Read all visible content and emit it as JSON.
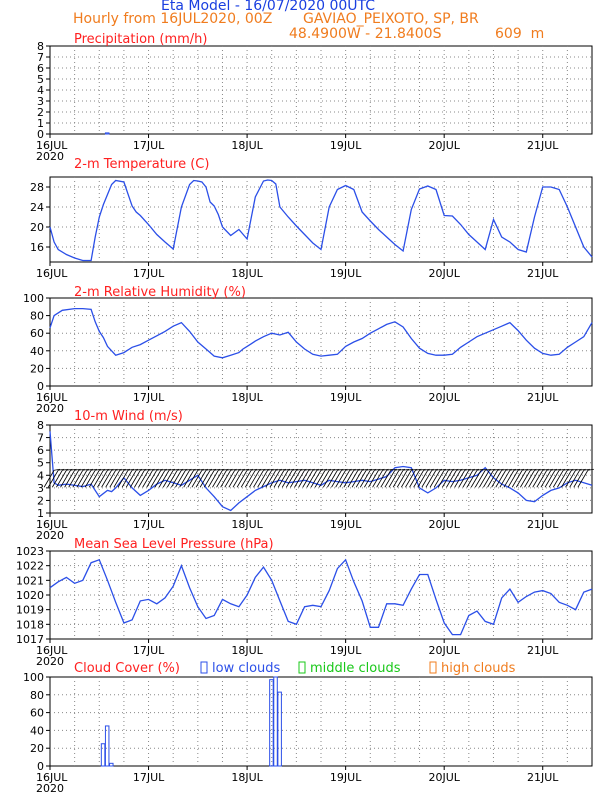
{
  "header": {
    "title": "Eta Model - 16/07/2020 00UTC",
    "subtitle": "Hourly from 16JUL2020, 00Z",
    "location": "GAVIAO_PEIXOTO, SP, BR",
    "coords": "48.4900W - 21.8400S",
    "elevation": "609  m"
  },
  "colors": {
    "title": "#1a3fe0",
    "meta": "#f07c1e",
    "panel_title": "#ff2020",
    "line": "#2b4fe8",
    "wind": "#000000",
    "mid": "#19c819"
  },
  "x_axis": {
    "ticks": [
      "16JUL",
      "17JUL",
      "18JUL",
      "19JUL",
      "20JUL",
      "21JUL"
    ],
    "year": "2020",
    "hours_range": [
      0,
      132
    ],
    "tick_interval_hours": 24
  },
  "chart_data": [
    {
      "type": "bar",
      "title": "Precipitation (mm/h)",
      "ylim": [
        0,
        8
      ],
      "yticks": [
        0,
        1,
        2,
        3,
        4,
        5,
        6,
        7,
        8
      ],
      "series": [
        {
          "x": [
            14
          ],
          "values": [
            0.1
          ]
        }
      ],
      "grid": true
    },
    {
      "type": "line",
      "title": "2-m Temperature (C)",
      "ylim": [
        13,
        30
      ],
      "yticks": [
        16,
        20,
        24,
        28
      ],
      "series": [
        {
          "x": [
            0,
            1,
            2,
            4,
            6,
            8,
            10,
            11,
            12,
            13,
            14,
            15,
            16,
            18,
            20,
            21,
            22,
            24,
            26,
            28,
            30,
            32,
            34,
            35,
            36,
            37,
            38,
            39,
            40,
            41,
            42,
            44,
            46,
            48,
            50,
            52,
            53,
            54,
            55,
            56,
            58,
            60,
            62,
            64,
            66,
            68,
            70,
            72,
            74,
            76,
            78,
            80,
            82,
            84,
            86,
            88,
            90,
            92,
            94,
            96,
            98,
            100,
            102,
            104,
            106,
            108,
            110,
            112,
            114,
            116,
            118,
            120,
            122,
            124,
            126,
            128,
            130,
            132
          ],
          "values": [
            20,
            17,
            15.5,
            14.5,
            13.8,
            13.3,
            13.3,
            18,
            22,
            24.5,
            26.5,
            28.5,
            29.3,
            29,
            24.2,
            23,
            22.3,
            20.5,
            18.5,
            17,
            15.6,
            24,
            28.5,
            29.3,
            29.2,
            29,
            28,
            25,
            24.2,
            22.5,
            20,
            18.3,
            19.5,
            17.6,
            26,
            29.2,
            29.4,
            29.3,
            28.6,
            24,
            22,
            20.2,
            18.5,
            16.8,
            15.5,
            24,
            27.5,
            28.3,
            27.5,
            23,
            21.2,
            19.5,
            18,
            16.5,
            15.2,
            23.5,
            27.6,
            28.2,
            27.5,
            22.3,
            22.2,
            20.5,
            18.5,
            17,
            15.5,
            21.5,
            18,
            17,
            15.5,
            15,
            22,
            28,
            28,
            27.5,
            24,
            20,
            16,
            14
          ]
        }
      ],
      "grid": true
    },
    {
      "type": "line",
      "title": "2-m Relative Humidity (%)",
      "ylim": [
        0,
        100
      ],
      "yticks": [
        0,
        20,
        40,
        60,
        80,
        100
      ],
      "series": [
        {
          "x": [
            0,
            1,
            3,
            6,
            8,
            10,
            11,
            12,
            13,
            14,
            15,
            16,
            18,
            20,
            22,
            24,
            26,
            28,
            30,
            32,
            34,
            36,
            38,
            40,
            42,
            44,
            46,
            47,
            48,
            49,
            50,
            52,
            54,
            56,
            58,
            60,
            62,
            64,
            66,
            68,
            70,
            72,
            74,
            76,
            78,
            80,
            82,
            84,
            86,
            88,
            90,
            92,
            94,
            96,
            98,
            100,
            102,
            104,
            106,
            108,
            110,
            112,
            114,
            116,
            118,
            120,
            122,
            124,
            126,
            128,
            130,
            132
          ],
          "values": [
            66,
            80,
            86,
            88,
            88,
            87,
            73,
            62,
            55,
            45,
            40,
            35,
            38,
            44,
            47,
            52,
            57,
            62,
            68,
            72,
            62,
            50,
            42,
            34,
            32,
            35,
            38,
            42,
            45,
            48,
            51,
            56,
            60,
            58,
            61,
            50,
            42,
            36,
            34,
            35,
            36,
            45,
            50,
            54,
            60,
            65,
            70,
            73,
            67,
            54,
            43,
            37,
            35,
            35,
            36,
            44,
            50,
            56,
            60,
            64,
            68,
            72,
            63,
            52,
            43,
            37,
            35,
            36,
            44,
            50,
            56,
            72
          ]
        }
      ],
      "grid": true
    },
    {
      "type": "line",
      "title": "10-m Wind (m/s)",
      "ylim": [
        1,
        8
      ],
      "yticks": [
        1,
        2,
        3,
        4,
        5,
        6,
        7,
        8
      ],
      "series": [
        {
          "x": [
            0,
            1,
            2,
            4,
            6,
            8,
            10,
            12,
            14,
            15,
            16,
            18,
            20,
            22,
            24,
            26,
            28,
            30,
            32,
            34,
            36,
            38,
            40,
            42,
            44,
            46,
            48,
            50,
            52,
            54,
            56,
            58,
            60,
            62,
            64,
            66,
            68,
            70,
            72,
            74,
            76,
            78,
            80,
            82,
            84,
            86,
            88,
            90,
            92,
            94,
            96,
            98,
            100,
            102,
            104,
            106,
            108,
            110,
            112,
            114,
            116,
            118,
            120,
            122,
            124,
            126,
            128,
            130,
            132
          ],
          "values": [
            7.5,
            3.4,
            3.2,
            3.3,
            3.2,
            3.1,
            3.3,
            2.3,
            2.8,
            2.7,
            3.0,
            3.8,
            3.0,
            2.4,
            2.8,
            3.3,
            3.6,
            3.4,
            3.2,
            3.6,
            4.0,
            3.0,
            2.3,
            1.5,
            1.2,
            1.8,
            2.3,
            2.8,
            3.1,
            3.4,
            3.6,
            3.4,
            3.5,
            3.6,
            3.4,
            3.2,
            3.6,
            3.5,
            3.4,
            3.5,
            3.6,
            3.5,
            3.7,
            3.9,
            4.6,
            4.7,
            4.6,
            3.0,
            2.6,
            3.0,
            3.6,
            3.5,
            3.6,
            3.8,
            4.0,
            4.6,
            3.8,
            3.3,
            3.0,
            2.6,
            2.0,
            1.9,
            2.4,
            2.8,
            3.0,
            3.4,
            3.6,
            3.4,
            3.2
          ]
        }
      ],
      "barbs": {
        "every_hours": 1,
        "direction": "northwest"
      },
      "grid": true
    },
    {
      "type": "line",
      "title": "Mean Sea Level Pressure (hPa)",
      "ylim": [
        1017,
        1023
      ],
      "yticks": [
        1017,
        1018,
        1019,
        1020,
        1021,
        1022,
        1023
      ],
      "series": [
        {
          "x": [
            0,
            2,
            4,
            6,
            8,
            10,
            12,
            14,
            16,
            18,
            20,
            22,
            24,
            26,
            28,
            30,
            32,
            34,
            36,
            38,
            40,
            42,
            44,
            46,
            48,
            50,
            52,
            54,
            56,
            58,
            60,
            62,
            64,
            66,
            68,
            70,
            72,
            74,
            76,
            78,
            80,
            82,
            84,
            86,
            88,
            90,
            92,
            94,
            96,
            98,
            100,
            102,
            104,
            106,
            108,
            110,
            112,
            114,
            116,
            118,
            120,
            122,
            124,
            126,
            128,
            130,
            132
          ],
          "values": [
            1020.5,
            1020.9,
            1021.2,
            1020.8,
            1021.0,
            1022.2,
            1022.4,
            1021.0,
            1019.5,
            1018.1,
            1018.3,
            1019.6,
            1019.7,
            1019.4,
            1019.8,
            1020.6,
            1022.0,
            1020.5,
            1019.2,
            1018.4,
            1018.6,
            1019.7,
            1019.4,
            1019.2,
            1020.0,
            1021.2,
            1021.9,
            1021.0,
            1019.6,
            1018.2,
            1018.0,
            1019.2,
            1019.3,
            1019.2,
            1020.3,
            1021.8,
            1022.4,
            1020.9,
            1019.6,
            1017.8,
            1017.8,
            1019.4,
            1019.4,
            1019.3,
            1020.4,
            1021.4,
            1021.4,
            1019.7,
            1018.1,
            1017.3,
            1017.3,
            1018.6,
            1018.9,
            1018.2,
            1018.0,
            1019.8,
            1020.4,
            1019.5,
            1019.9,
            1020.2,
            1020.3,
            1020.1,
            1019.5,
            1019.3,
            1019.0,
            1020.2,
            1020.4
          ]
        }
      ],
      "grid": true
    },
    {
      "type": "bar",
      "title": "Cloud Cover (%)",
      "ylim": [
        0,
        100
      ],
      "yticks": [
        0,
        20,
        40,
        60,
        80,
        100
      ],
      "legend": [
        "low clouds",
        "middle clouds",
        "high clouds"
      ],
      "series": [
        {
          "name": "low clouds",
          "x": [
            13,
            14,
            15,
            54,
            55,
            56
          ],
          "values": [
            25,
            45,
            3,
            97,
            100,
            83
          ]
        },
        {
          "name": "middle clouds",
          "x": [],
          "values": []
        },
        {
          "name": "high clouds",
          "x": [],
          "values": []
        }
      ],
      "grid": true
    }
  ]
}
